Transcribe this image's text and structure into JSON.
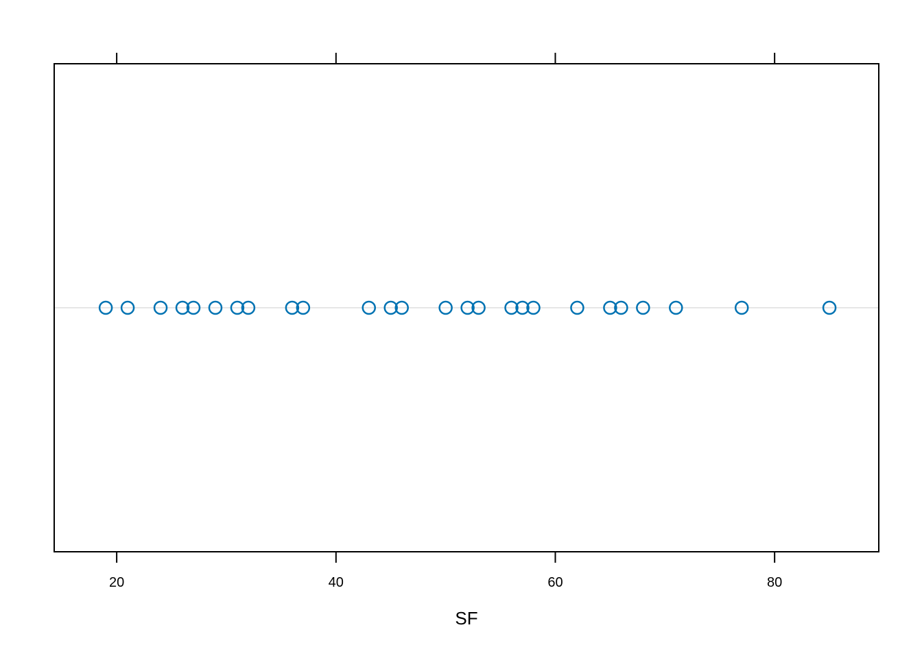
{
  "chart_data": {
    "type": "scatter",
    "xlabel": "SF",
    "xlim": [
      14.3,
      89.5
    ],
    "x_ticks": [
      20,
      40,
      60,
      80
    ],
    "x_tick_labels": [
      "20",
      "40",
      "60",
      "80"
    ],
    "grid": false,
    "reference_line": true,
    "series": [
      {
        "x": [
          19,
          21,
          24,
          26,
          27,
          29,
          31,
          32,
          36,
          37,
          43,
          45,
          46,
          50,
          52,
          53,
          56,
          57,
          58,
          62,
          65,
          66,
          68,
          71,
          77,
          85
        ],
        "marker": "open-circle",
        "color": "#0072B2"
      }
    ],
    "frame_color": "#000000",
    "reference_line_color": "#e6e6e6"
  }
}
